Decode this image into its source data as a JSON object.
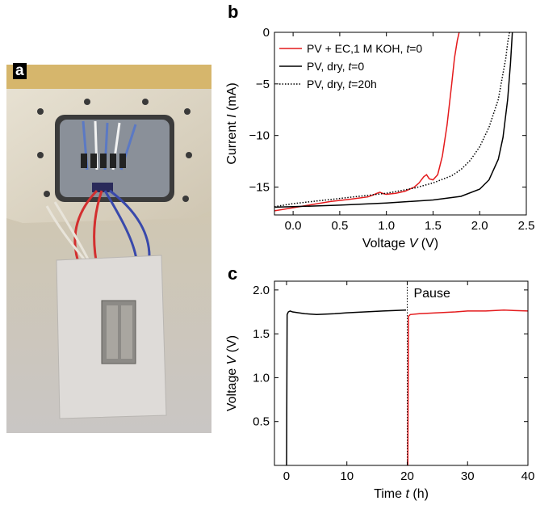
{
  "panel_labels": {
    "a": "a",
    "b": "b",
    "c": "c"
  },
  "colors": {
    "red": "#e41a1c",
    "black": "#000000"
  },
  "chart_data": [
    {
      "panel": "b",
      "type": "line",
      "xlabel_prefix": "Voltage ",
      "xlabel_var": "V",
      "xlabel_unit": " (V)",
      "ylabel_prefix": "Current ",
      "ylabel_var": "I",
      "ylabel_unit": " (mA)",
      "xlim": [
        -0.2,
        2.5
      ],
      "ylim": [
        -17.7,
        0
      ],
      "xticks": [
        "0.0",
        "0.5",
        "1.0",
        "1.5",
        "2.0",
        "2.5"
      ],
      "xtick_values": [
        0,
        0.5,
        1.0,
        1.5,
        2.0,
        2.5
      ],
      "yticks": [
        "0",
        "−5",
        "−10",
        "−15"
      ],
      "ytick_values": [
        0,
        -5,
        -10,
        -15
      ],
      "legend_position": "top-left",
      "series": [
        {
          "legend_prefix": "PV + EC,1 M KOH, ",
          "legend_var": "t",
          "legend_suffix": "=0",
          "color": "#e41a1c",
          "style": "solid",
          "x": [
            -0.2,
            0.0,
            0.2,
            0.4,
            0.6,
            0.8,
            0.85,
            0.9,
            0.93,
            0.97,
            1.0,
            1.1,
            1.2,
            1.3,
            1.35,
            1.4,
            1.43,
            1.46,
            1.5,
            1.55,
            1.6,
            1.65,
            1.7,
            1.73,
            1.76,
            1.78
          ],
          "y": [
            -17.3,
            -17.0,
            -16.7,
            -16.4,
            -16.2,
            -15.95,
            -15.8,
            -15.6,
            -15.5,
            -15.65,
            -15.7,
            -15.6,
            -15.4,
            -15.0,
            -14.6,
            -14.0,
            -13.8,
            -14.2,
            -14.3,
            -13.8,
            -12.0,
            -9.0,
            -5.0,
            -2.5,
            -0.8,
            0.0
          ]
        },
        {
          "legend_prefix": "PV, dry, ",
          "legend_var": "t",
          "legend_suffix": "=0",
          "color": "#000000",
          "style": "solid",
          "x": [
            -0.2,
            0.0,
            0.5,
            1.0,
            1.5,
            1.8,
            2.0,
            2.1,
            2.2,
            2.25,
            2.3,
            2.33,
            2.35
          ],
          "y": [
            -16.95,
            -16.9,
            -16.75,
            -16.55,
            -16.25,
            -15.9,
            -15.2,
            -14.3,
            -12.3,
            -10.2,
            -6.5,
            -3.0,
            0.0
          ]
        },
        {
          "legend_prefix": "PV, dry, ",
          "legend_var": "t",
          "legend_suffix": "=20h",
          "color": "#000000",
          "style": "dotted",
          "x": [
            -0.2,
            0.0,
            0.5,
            1.0,
            1.3,
            1.5,
            1.7,
            1.8,
            1.9,
            2.0,
            2.1,
            2.2,
            2.25,
            2.28,
            2.3,
            2.32
          ],
          "y": [
            -16.9,
            -16.6,
            -16.1,
            -15.6,
            -15.1,
            -14.6,
            -13.9,
            -13.3,
            -12.4,
            -11.1,
            -9.2,
            -6.5,
            -4.0,
            -2.5,
            -1.0,
            0.0
          ]
        }
      ]
    },
    {
      "panel": "c",
      "type": "line",
      "xlabel_prefix": "Time ",
      "xlabel_var": "t",
      "xlabel_unit": " (h)",
      "ylabel_prefix": "Voltage ",
      "ylabel_var": "V",
      "ylabel_unit": " (V)",
      "xlim": [
        -2,
        40
      ],
      "ylim": [
        0,
        2.1
      ],
      "xticks": [
        "0",
        "10",
        "20",
        "30",
        "40"
      ],
      "xtick_values": [
        0,
        10,
        20,
        30,
        40
      ],
      "yticks": [
        "0.5",
        "1.0",
        "1.5",
        "2.0"
      ],
      "ytick_values": [
        0.5,
        1.0,
        1.5,
        2.0
      ],
      "annotation": "Pause",
      "pause_x": 20,
      "series": [
        {
          "color": "#000000",
          "style": "solid",
          "x": [
            0,
            0.1,
            0.3,
            0.6,
            1.0,
            2.0,
            3.0,
            5.0,
            8.0,
            10.0,
            13.0,
            16.0,
            19.8
          ],
          "y": [
            0,
            1.72,
            1.75,
            1.76,
            1.75,
            1.74,
            1.73,
            1.72,
            1.73,
            1.74,
            1.75,
            1.76,
            1.77
          ]
        },
        {
          "color": "#e41a1c",
          "style": "solid",
          "x": [
            20.1,
            20.2,
            20.5,
            22.0,
            25.0,
            28.0,
            30.0,
            33.0,
            36.0,
            40.0
          ],
          "y": [
            0,
            1.7,
            1.72,
            1.73,
            1.74,
            1.75,
            1.76,
            1.76,
            1.77,
            1.76
          ]
        }
      ]
    }
  ]
}
